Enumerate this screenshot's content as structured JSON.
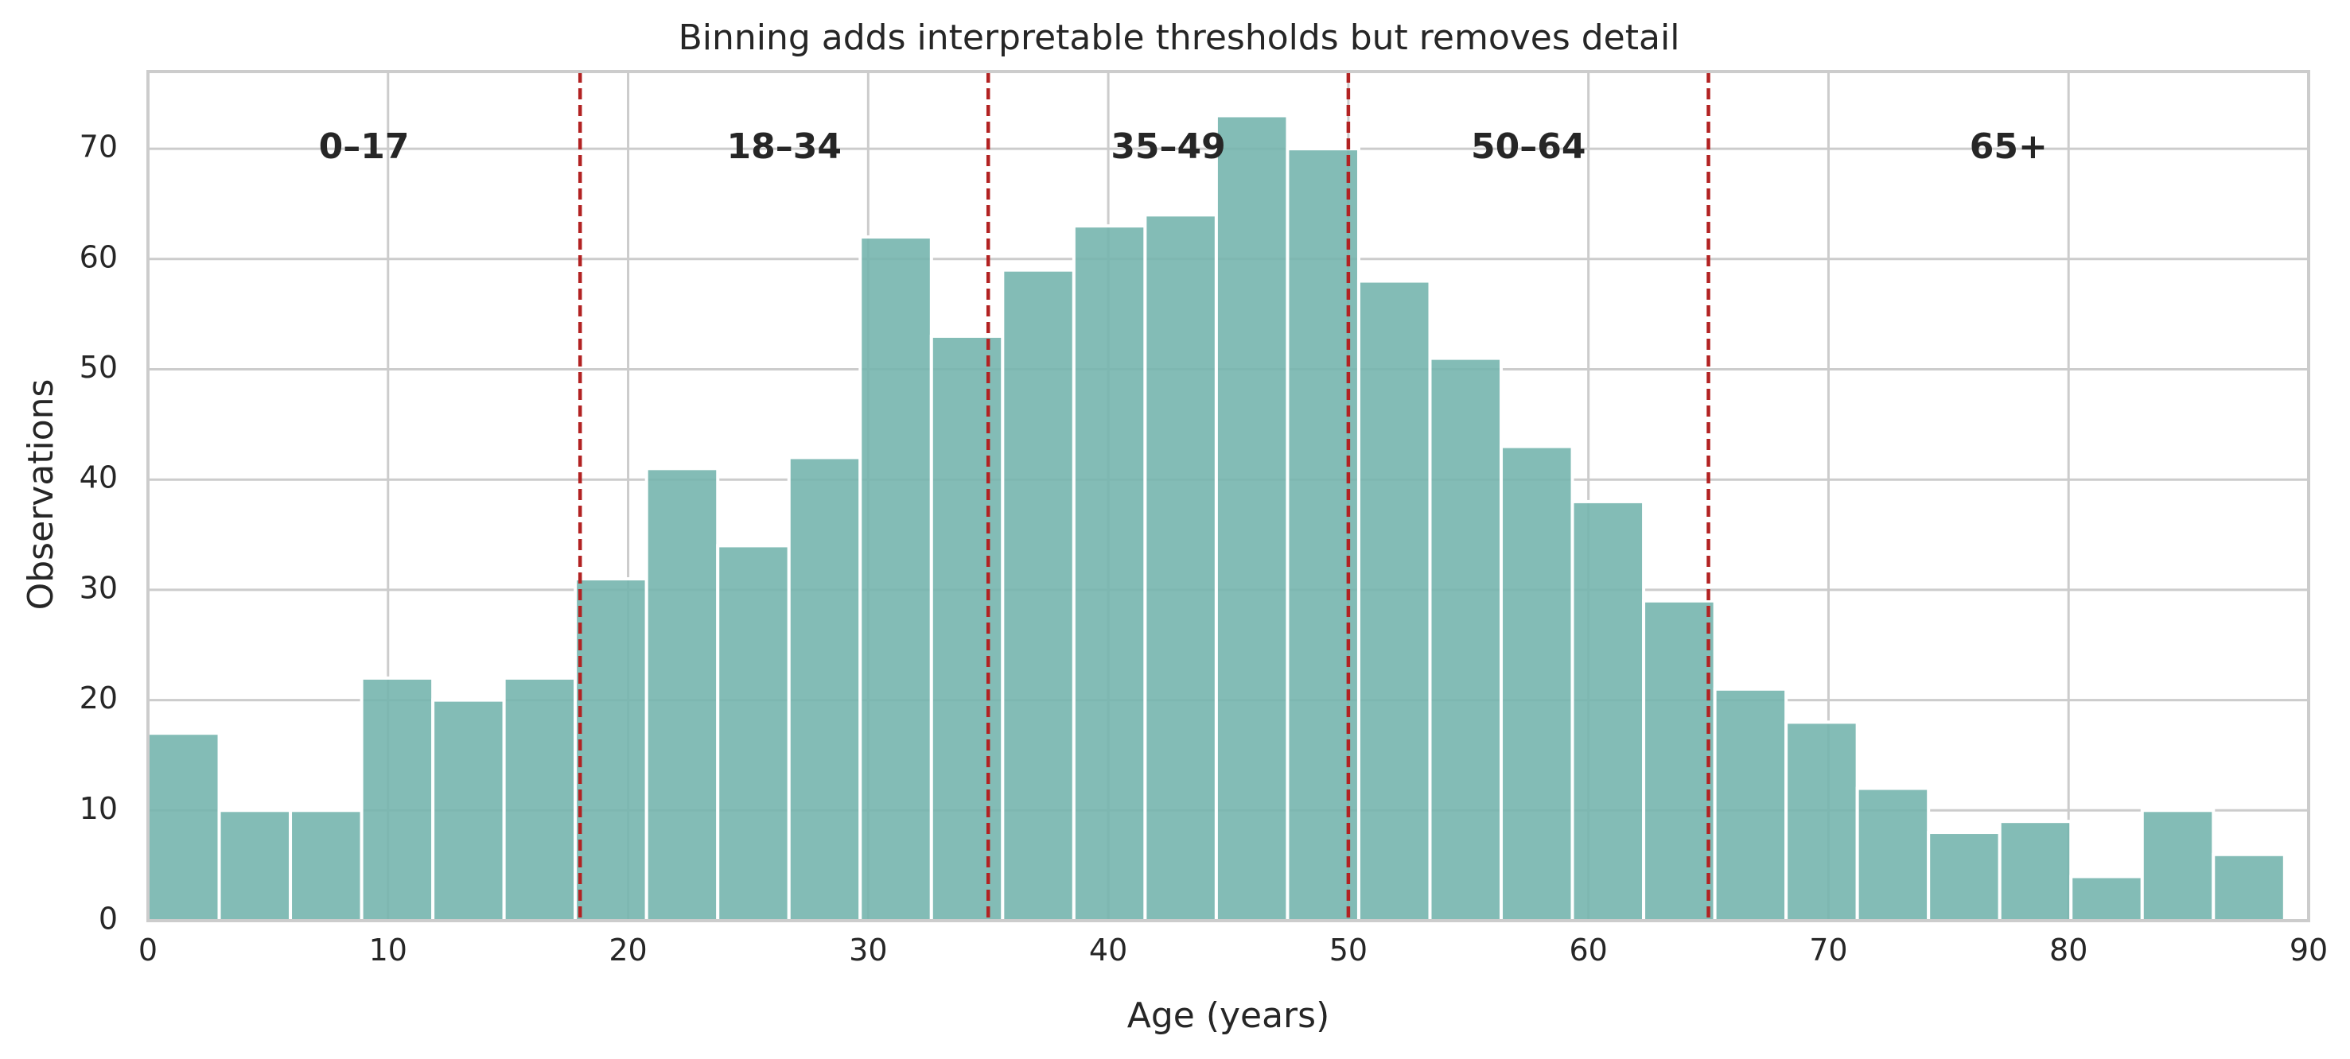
{
  "chart_data": {
    "type": "bar",
    "title": "Binning adds interpretable thresholds but removes detail",
    "xlabel": "Age (years)",
    "ylabel": "Observations",
    "xlim": [
      0,
      90
    ],
    "ylim": [
      0,
      77
    ],
    "xticks": [
      0,
      10,
      20,
      30,
      40,
      50,
      60,
      70,
      80,
      90
    ],
    "yticks": [
      0,
      10,
      20,
      30,
      40,
      50,
      60,
      70
    ],
    "grid": true,
    "bin_width": 2.967,
    "bins": [
      {
        "start": 0.0,
        "value": 17
      },
      {
        "start": 2.967,
        "value": 10
      },
      {
        "start": 5.933,
        "value": 10
      },
      {
        "start": 8.9,
        "value": 22
      },
      {
        "start": 11.867,
        "value": 20
      },
      {
        "start": 14.833,
        "value": 22
      },
      {
        "start": 17.8,
        "value": 31
      },
      {
        "start": 20.767,
        "value": 41
      },
      {
        "start": 23.733,
        "value": 34
      },
      {
        "start": 26.7,
        "value": 42
      },
      {
        "start": 29.667,
        "value": 62
      },
      {
        "start": 32.633,
        "value": 53
      },
      {
        "start": 35.6,
        "value": 59
      },
      {
        "start": 38.567,
        "value": 63
      },
      {
        "start": 41.533,
        "value": 64
      },
      {
        "start": 44.5,
        "value": 73
      },
      {
        "start": 47.467,
        "value": 70
      },
      {
        "start": 50.433,
        "value": 58
      },
      {
        "start": 53.4,
        "value": 51
      },
      {
        "start": 56.367,
        "value": 43
      },
      {
        "start": 59.333,
        "value": 38
      },
      {
        "start": 62.3,
        "value": 29
      },
      {
        "start": 65.267,
        "value": 21
      },
      {
        "start": 68.233,
        "value": 18
      },
      {
        "start": 71.2,
        "value": 12
      },
      {
        "start": 74.167,
        "value": 8
      },
      {
        "start": 77.133,
        "value": 9
      },
      {
        "start": 80.1,
        "value": 4
      },
      {
        "start": 83.067,
        "value": 10
      },
      {
        "start": 86.033,
        "value": 6
      }
    ],
    "thresholds": [
      18,
      35,
      50,
      65
    ],
    "bin_labels": [
      {
        "text": "0–17",
        "x": 9,
        "y": 70
      },
      {
        "text": "18–34",
        "x": 26.5,
        "y": 70
      },
      {
        "text": "35–49",
        "x": 42.5,
        "y": 70
      },
      {
        "text": "50–64",
        "x": 57.5,
        "y": 70
      },
      {
        "text": "65+",
        "x": 77.5,
        "y": 70
      }
    ],
    "colors": {
      "bar": "#75b5ae",
      "threshold": "#b22222",
      "grid": "#cccccc",
      "text": "#262626"
    }
  }
}
